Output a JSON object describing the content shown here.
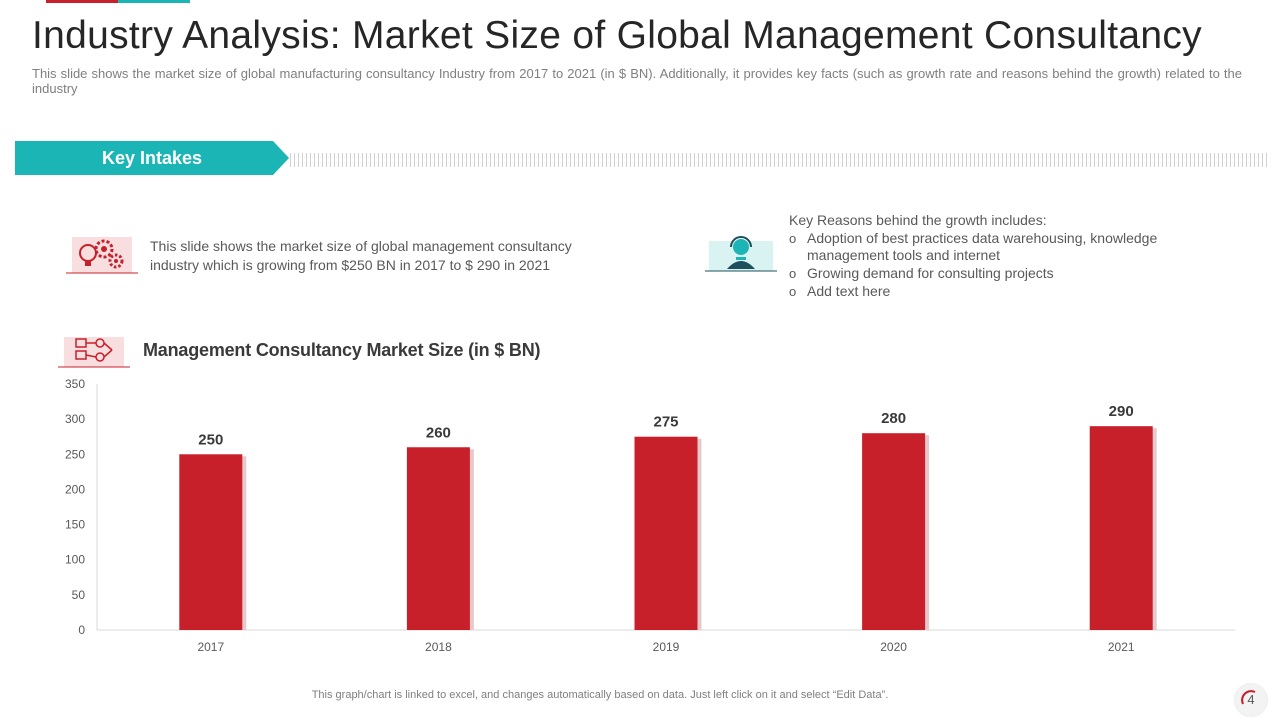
{
  "slide": {
    "title": "Industry Analysis: Market Size of Global Management Consultancy",
    "subtitle": "This slide shows the market size of global manufacturing consultancy Industry from 2017 to 2021 (in $ BN). Additionally,  it provides key facts (such as growth rate and reasons behind the growth) related to the industry",
    "banner_label": "Key Intakes",
    "intake_text": "This slide shows the market size of global management consultancy industry which is growing from $250 BN in 2017 to $ 290 in 2021",
    "reasons_heading": "Key Reasons behind the growth includes:",
    "reasons": [
      "Adoption of best practices data warehousing, knowledge management tools and internet",
      "Growing demand for consulting projects",
      "Add text here"
    ],
    "bullet_glyph": "o",
    "footnote": "This graph/chart is linked to excel, and changes automatically based on data. Just left click on it and select “Edit Data”.",
    "page_number": "4"
  },
  "colors": {
    "accent_red": "#c8202b",
    "accent_teal": "#1bb5b5",
    "icon_bg_red": "#f8dede",
    "icon_bg_teal": "#d9f3f3"
  },
  "icons": [
    "gear-bulb-icon",
    "support-agent-icon",
    "network-chart-icon"
  ],
  "chart_data": {
    "type": "bar",
    "title": "Management Consultancy Market Size (in $ BN)",
    "categories": [
      "2017",
      "2018",
      "2019",
      "2020",
      "2021"
    ],
    "values": [
      250,
      260,
      275,
      280,
      290
    ],
    "ylim": [
      0,
      350
    ],
    "yticks": [
      0,
      50,
      100,
      150,
      200,
      250,
      300,
      350
    ],
    "xlabel": "",
    "ylabel": "",
    "grid": false,
    "legend": "none"
  }
}
